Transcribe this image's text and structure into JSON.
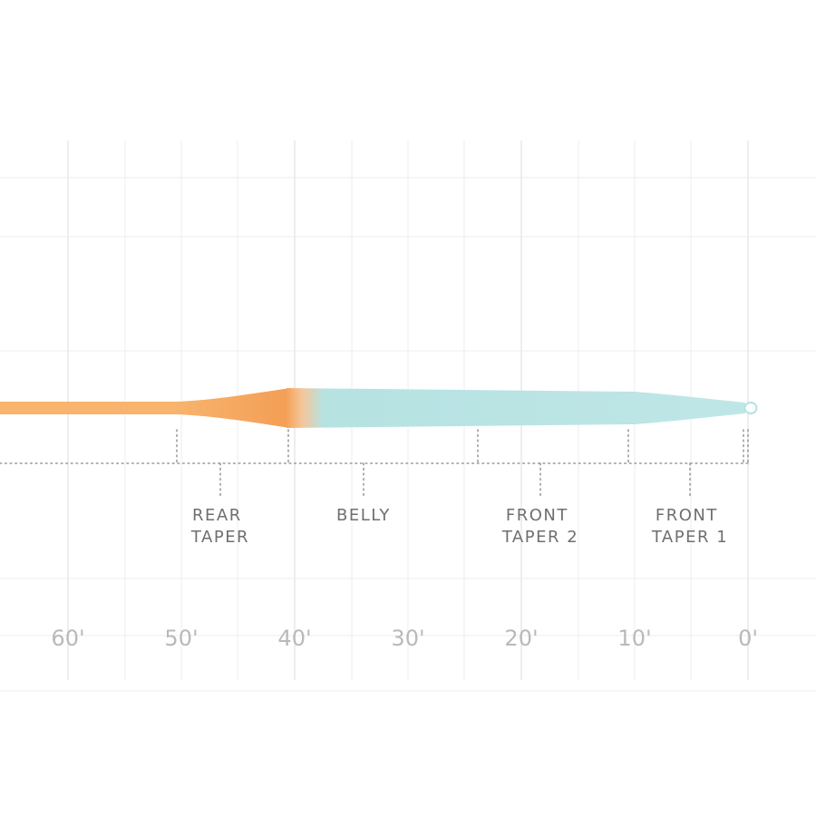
{
  "colors": {
    "running_line": "#f8b36c",
    "rear_taper": "#f4a45c",
    "head": "#b3e3e3",
    "grid": "#eceef0",
    "dimension_line": "#9a9a9a",
    "segment_text": "#6f6f6f",
    "distance_text": "#b9b9b9"
  },
  "segments": [
    {
      "id": "rear-taper",
      "lines": [
        "REAR",
        "TAPER"
      ]
    },
    {
      "id": "belly",
      "lines": [
        "BELLY"
      ]
    },
    {
      "id": "front-taper-2",
      "lines": [
        "FRONT",
        "TAPER 2"
      ]
    },
    {
      "id": "front-taper-1",
      "lines": [
        "FRONT",
        "TAPER 1"
      ]
    }
  ],
  "distance_axis": [
    "60'",
    "50'",
    "40'",
    "30'",
    "20'",
    "10'",
    "0'"
  ]
}
